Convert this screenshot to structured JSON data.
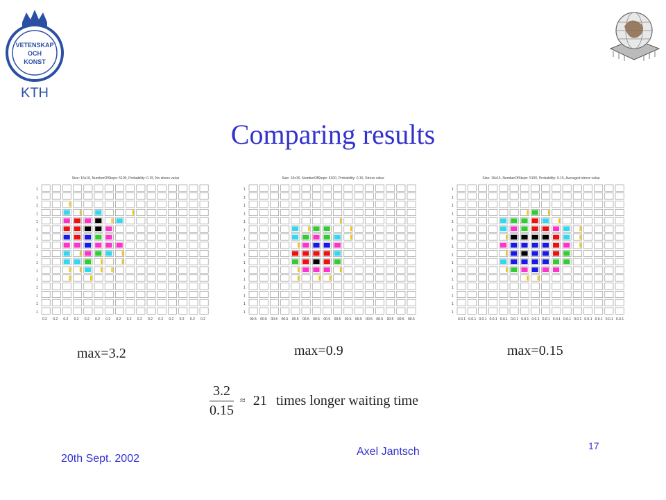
{
  "slide": {
    "title": "Comparing results",
    "logo_left": {
      "lines": [
        "VETENSKAP",
        "OCH",
        "KONST"
      ],
      "wordmark": "KTH"
    },
    "panels": [
      {
        "caption": "Size: 16x16, NumberOfSteps: 5100, Probability: 0.15, No stress value",
        "tick_label": "0.2",
        "max_label": "max=3.2"
      },
      {
        "caption": "Size: 16x16, NumberOfSteps: 5100, Probability: 0.15, Stress value",
        "tick_label": "00.5",
        "max_label": "max=0.9"
      },
      {
        "caption": "Size: 16x16, NumberOfSteps: 5100, Probability: 0.15, Averaged stress value",
        "tick_label": "0.0.1",
        "max_label": "max=0.15"
      }
    ],
    "equation": {
      "numerator": "3.2",
      "denominator": "0.15",
      "approx": "≈",
      "value": "21"
    },
    "equation_text": "times longer waiting time",
    "footer_left": "20th Sept. 2002",
    "footer_center": "Axel Jantsch",
    "page_number": "17"
  },
  "colors": {
    "title": "#3333cc",
    "footer": "#3333cc",
    "cells": {
      "yellow": "#f5c400",
      "cyan": "#33d8f0",
      "green": "#33cc33",
      "magenta": "#ff33cc",
      "red": "#ee1111",
      "blue": "#1a1ae6",
      "black": "#000000"
    }
  }
}
